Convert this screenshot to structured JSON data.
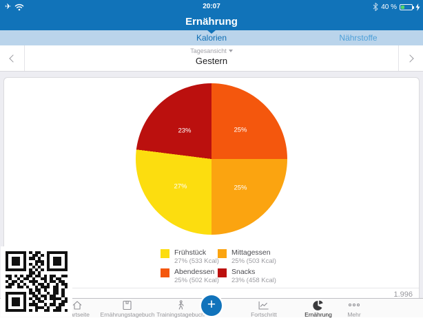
{
  "colors": {
    "header_blue": "#1173B9",
    "tab_strip_blue": "#BAD4EB",
    "selected_tab_text": "#0D6DB3",
    "unselected_tab_text": "#4C9FD8",
    "battery_green": "#53D769"
  },
  "status_bar": {
    "time": "20:07",
    "battery_text": "40 %",
    "battery_level": 40
  },
  "header": {
    "title": "Ernährung"
  },
  "segmented_tabs": {
    "items": [
      {
        "label": "Kalorien",
        "selected": true
      },
      {
        "label": "Nährstoffe",
        "selected": false
      }
    ]
  },
  "date_nav": {
    "mode_label": "Tagesansicht",
    "value": "Gestern"
  },
  "chart_data": {
    "type": "pie",
    "start_angle_deg": 0,
    "direction": "clockwise",
    "slices": [
      {
        "label": "Abendessen",
        "percent": 25,
        "kcal": 502,
        "color": "#F4570D",
        "percent_label": "25%"
      },
      {
        "label": "Mittagessen",
        "percent": 25,
        "kcal": 503,
        "color": "#FBA410",
        "percent_label": "25%"
      },
      {
        "label": "Frühstück",
        "percent": 27,
        "kcal": 533,
        "color": "#FCDD0F",
        "percent_label": "27%"
      },
      {
        "label": "Snacks",
        "percent": 23,
        "kcal": 458,
        "color": "#BB100E",
        "percent_label": "23%"
      }
    ],
    "legend_position": "bottom",
    "total_kcal": 1996
  },
  "legend": {
    "items": [
      {
        "name": "Frühstück",
        "detail": "27% (533 Kcal)",
        "color": "#FCDD0F"
      },
      {
        "name": "Mittagessen",
        "detail": "25% (503 Kcal)",
        "color": "#FBA410"
      },
      {
        "name": "Abendessen",
        "detail": "25% (502 Kcal)",
        "color": "#F4570D"
      },
      {
        "name": "Snacks",
        "detail": "23% (458 Kcal)",
        "color": "#BB100E"
      }
    ]
  },
  "summary": {
    "total": "1.996"
  },
  "tab_bar": {
    "items": [
      {
        "label": "Startseite",
        "icon": "home",
        "active": false
      },
      {
        "label": "Ernährungstagebuch",
        "icon": "diary",
        "active": false
      },
      {
        "label": "Trainingstagebuch",
        "icon": "walker",
        "active": false
      },
      {
        "label": "Fortschritt",
        "icon": "progress-chart",
        "active": false
      },
      {
        "label": "Ernährung",
        "icon": "pie-chart",
        "active": true
      },
      {
        "label": "Mehr",
        "icon": "more-dots",
        "active": false
      }
    ],
    "add_button_label": "+"
  },
  "qr": {
    "matrix": [
      "111111101011001111111",
      "100000100110101000001",
      "101110101101001011101",
      "101110100011101011101",
      "101110101010101011101",
      "100000100101001000001",
      "111111101010101111111",
      "000000001101000000000",
      "110101011011010110011",
      "010010110100110101100",
      "101101001110010110110",
      "011010100101101001011",
      "110011010010111011001",
      "000000001011010011010",
      "111111101101001011010",
      "100000100110110110010",
      "101110101011010111101",
      "101110100101100010011",
      "101110101110010110110",
      "100000100011101001100",
      "111111101010011011101"
    ]
  }
}
